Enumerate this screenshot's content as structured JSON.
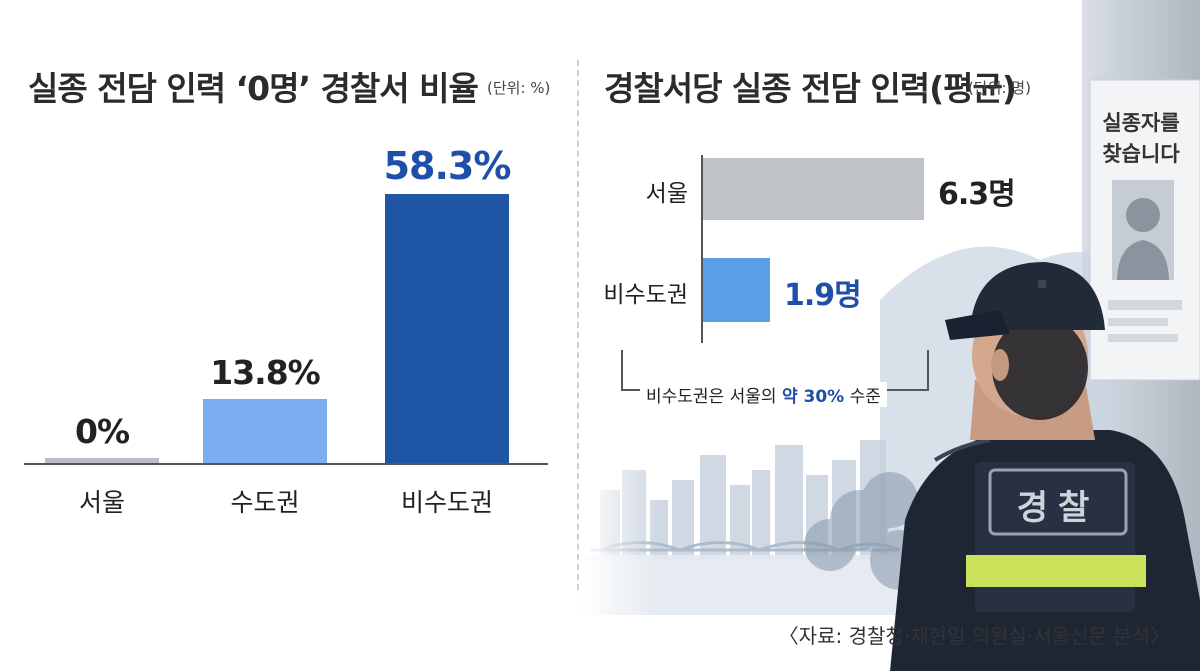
{
  "left_chart": {
    "title": "실종 전담 인력 ‘0명’ 경찰서 비율",
    "unit": "(단위: %)"
  },
  "right_chart": {
    "title": "경찰서당 실종 전담 인력(평균)",
    "unit": "(단위: 명)",
    "note_prefix": "비수도권은 서울의 ",
    "note_highlight": "약 30%",
    "note_suffix": " 수준"
  },
  "chart_data": [
    {
      "type": "bar",
      "title": "실종 전담 인력 ‘0명’ 경찰서 비율",
      "unit": "(단위: %)",
      "categories": [
        "서울",
        "수도권",
        "비수도권"
      ],
      "values": [
        0,
        13.8,
        58.3
      ],
      "value_labels": [
        "0%",
        "13.8%",
        "58.3%"
      ],
      "colors": [
        "#b9bec4",
        "#7aaef0",
        "#1f55a5"
      ],
      "ylim": [
        0,
        60
      ],
      "grid": false
    },
    {
      "type": "bar",
      "orientation": "horizontal",
      "title": "경찰서당 실종 전담 인력(평균)",
      "unit": "(단위: 명)",
      "categories": [
        "서울",
        "비수도권"
      ],
      "values": [
        6.3,
        1.9
      ],
      "value_labels": [
        "6.3명",
        "1.9명"
      ],
      "colors": [
        "#bfc3c8",
        "#5a9ee8"
      ],
      "xlim": [
        0,
        7
      ],
      "grid": false
    }
  ],
  "illustration": {
    "poster_text": "실종자를 찾습니다",
    "vest_text": "경찰"
  },
  "source": "〈자료: 경찰청·채현일 의원실·서울신문 분석〉"
}
